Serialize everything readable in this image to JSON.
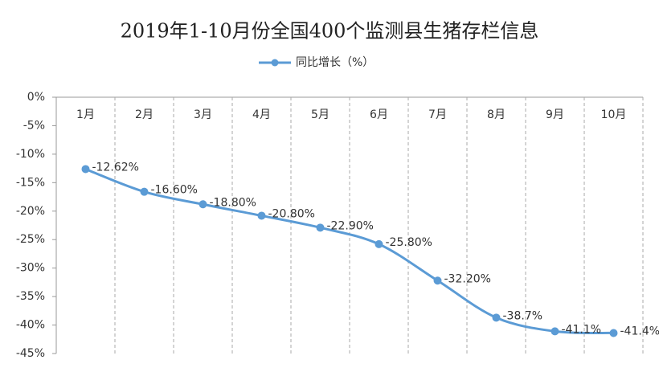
{
  "chart_data": {
    "type": "line",
    "title": "2019年1-10月份全国400个监测县生猪存栏信息",
    "categories": [
      "1月",
      "2月",
      "3月",
      "4月",
      "5月",
      "6月",
      "7月",
      "8月",
      "9月",
      "10月"
    ],
    "series": [
      {
        "name": "同比增长（%）",
        "color": "#5b9bd5",
        "values": [
          -12.62,
          -16.6,
          -18.8,
          -20.8,
          -22.9,
          -25.8,
          -32.2,
          -38.7,
          -41.1,
          -41.4
        ],
        "value_labels": [
          "-12.62%",
          "-16.60%",
          "-18.80%",
          "-20.80%",
          "-22.90%",
          "-25.80%",
          "-32.20%",
          "-38.7%",
          "-41.1%",
          "-41.4%"
        ]
      }
    ],
    "ylim": [
      -45,
      0
    ],
    "yticks": [
      {
        "value": 0,
        "label": "0%"
      },
      {
        "value": -5,
        "label": "-5%"
      },
      {
        "value": -10,
        "label": "-10%"
      },
      {
        "value": -15,
        "label": "-15%"
      },
      {
        "value": -20,
        "label": "-20%"
      },
      {
        "value": -25,
        "label": "-25%"
      },
      {
        "value": -30,
        "label": "-30%"
      },
      {
        "value": -35,
        "label": "-35%"
      },
      {
        "value": -40,
        "label": "-40%"
      },
      {
        "value": -45,
        "label": "-45%"
      }
    ],
    "grid": true
  }
}
